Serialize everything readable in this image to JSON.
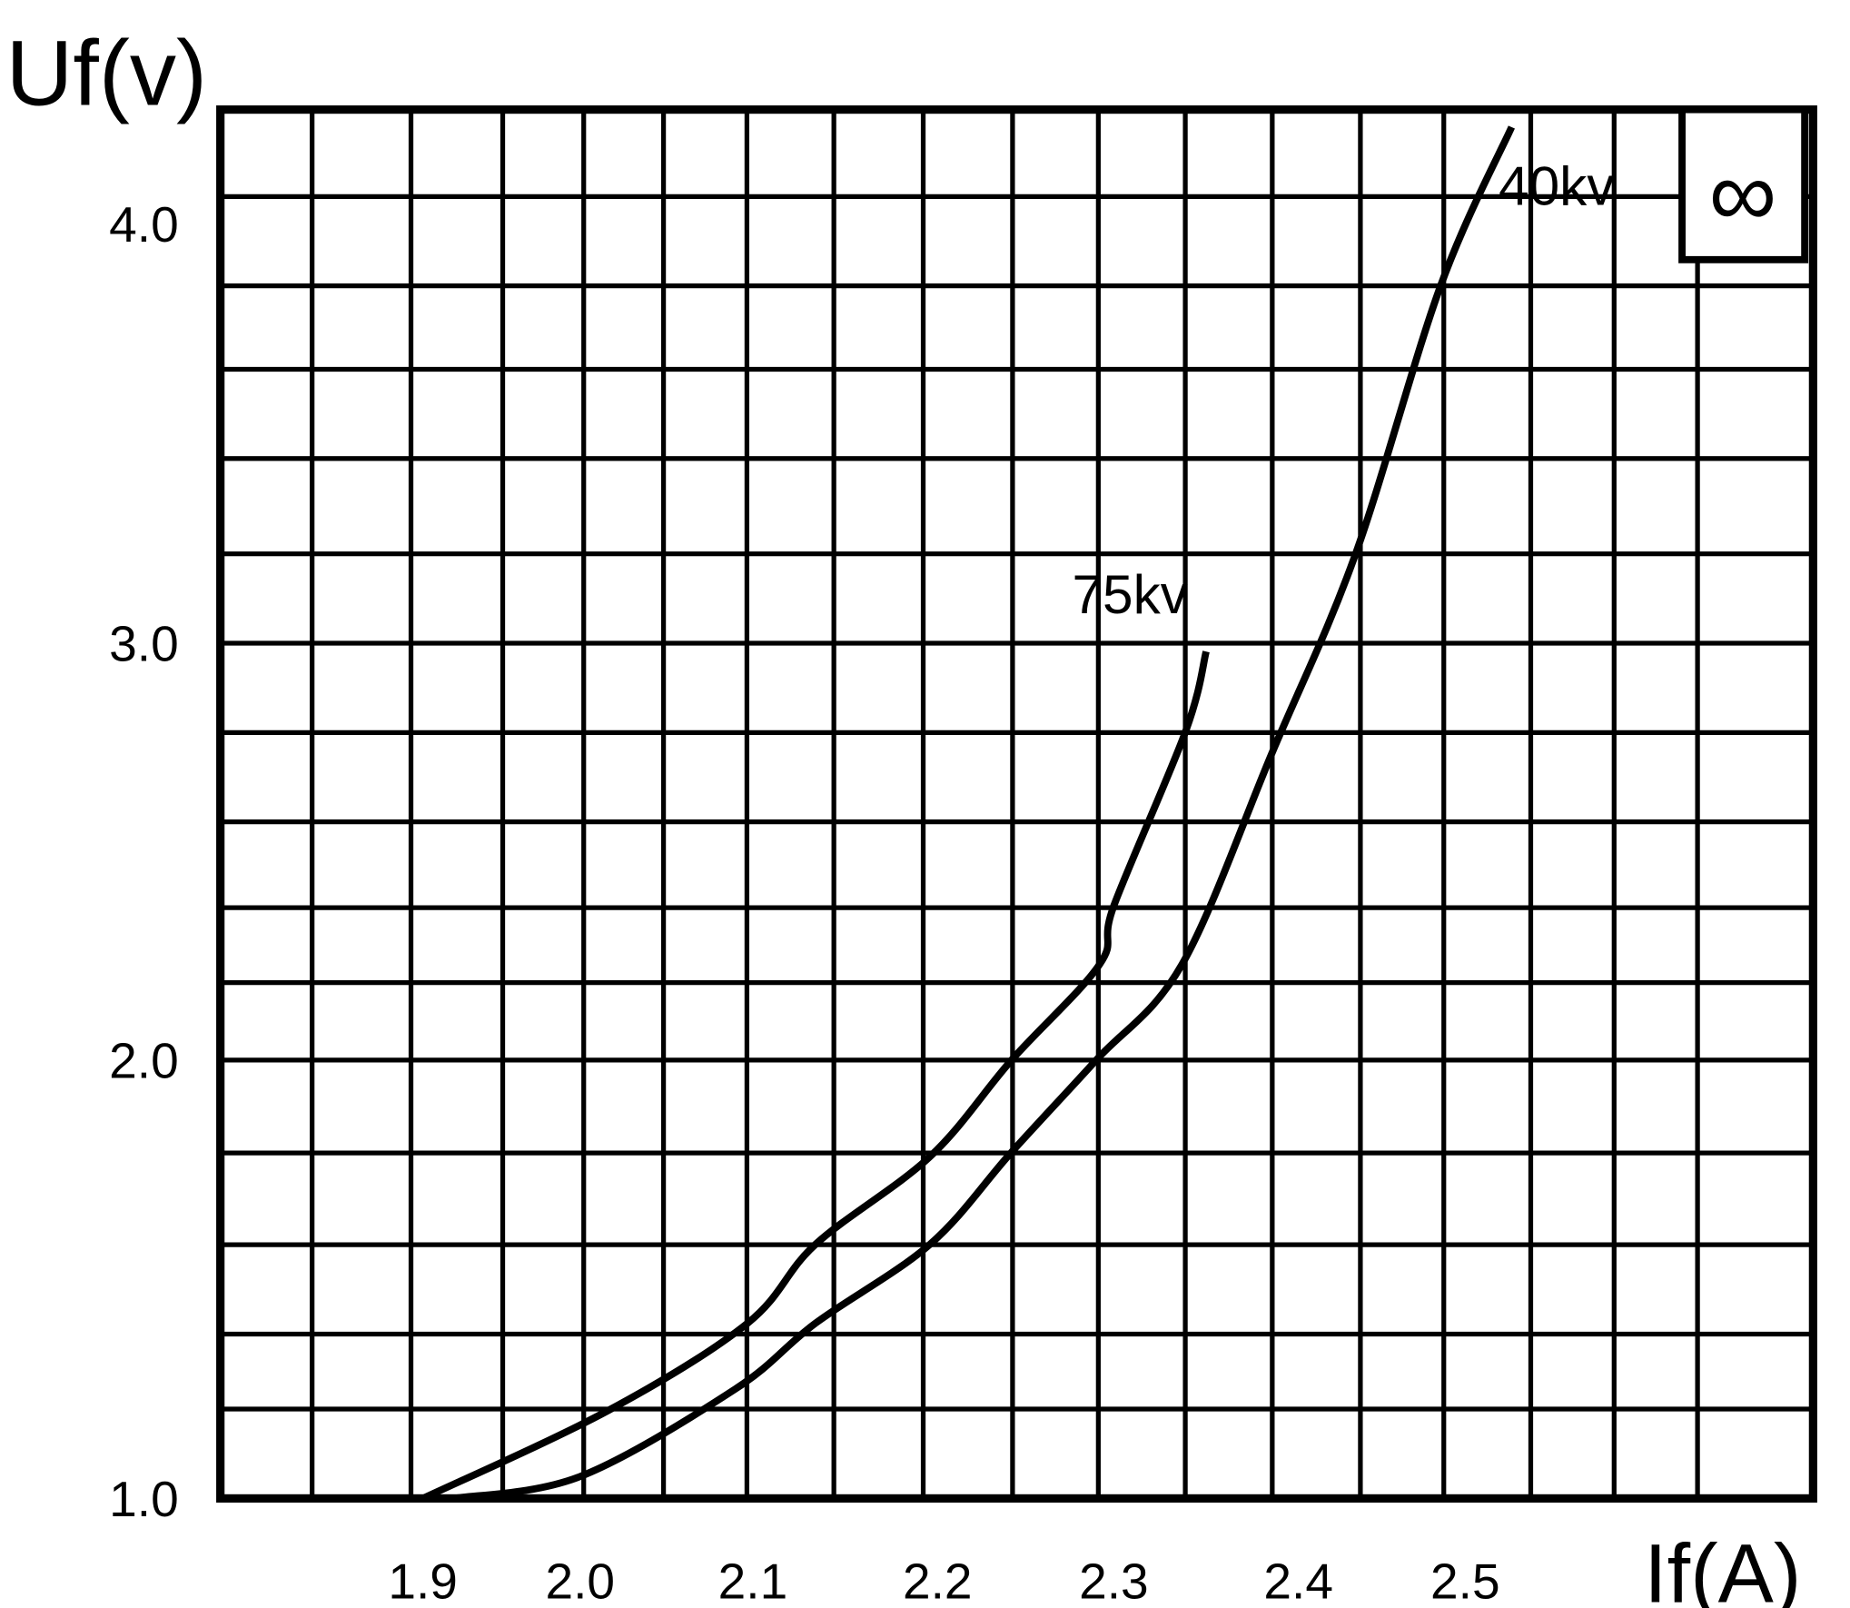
{
  "chart_data": {
    "type": "line",
    "title": "",
    "xlabel": "If(A)",
    "ylabel": "Uf(v)",
    "xticks": [
      "1.9",
      "2.0",
      "2.1",
      "2.2",
      "2.3",
      "2.4",
      "2.5"
    ],
    "yticks": [
      "1.0",
      "2.0",
      "3.0",
      "4.0"
    ],
    "xlim": [
      1.78,
      2.65
    ],
    "ylim": [
      1.0,
      4.3
    ],
    "grid": true,
    "legend_symbol": "∞",
    "legend_placement": "top-right",
    "series": [
      {
        "name": "75kv",
        "points": [
          [
            1.9,
            1.0
          ],
          [
            2.016,
            1.2
          ],
          [
            2.097,
            1.4
          ],
          [
            2.134,
            1.58
          ],
          [
            2.196,
            1.78
          ],
          [
            2.242,
            2.0
          ],
          [
            2.292,
            2.23
          ],
          [
            2.3,
            2.37
          ],
          [
            2.339,
            2.79
          ],
          [
            2.35,
            2.98
          ]
        ]
      },
      {
        "name": "40kv",
        "points": [
          [
            1.92,
            1.0
          ],
          [
            2.0,
            1.05
          ],
          [
            2.09,
            1.25
          ],
          [
            2.134,
            1.4
          ],
          [
            2.196,
            1.58
          ],
          [
            2.242,
            1.79
          ],
          [
            2.29,
            2.0
          ],
          [
            2.337,
            2.23
          ],
          [
            2.386,
            2.74
          ],
          [
            2.434,
            3.21
          ],
          [
            2.485,
            3.85
          ],
          [
            2.52,
            4.23
          ]
        ]
      }
    ]
  }
}
